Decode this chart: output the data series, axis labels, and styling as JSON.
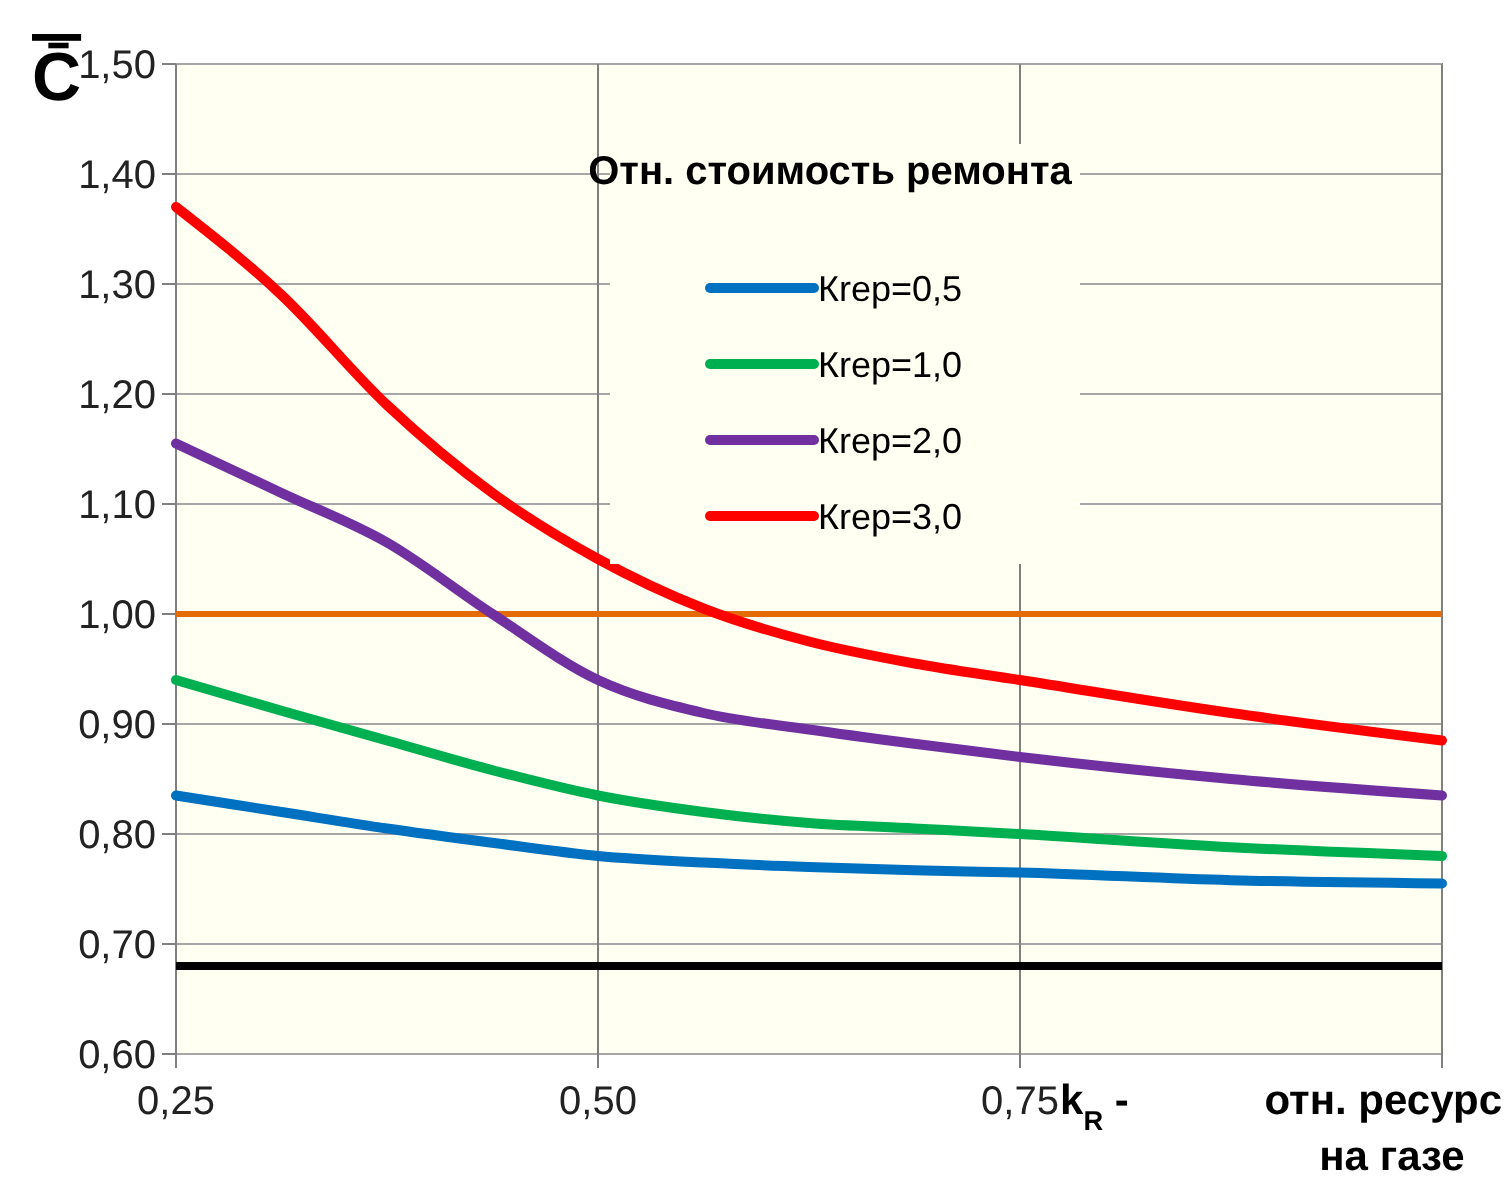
{
  "chart_data": {
    "type": "line",
    "ylabel": "C̄",
    "xlabel": "k$_{R}$ - отн. ресурс на газе",
    "legend_title": "Отн. стоимость ремонта",
    "x": [
      0.25,
      0.3125,
      0.375,
      0.4375,
      0.5,
      0.5625,
      0.625,
      0.6875,
      0.75,
      0.875,
      1.0
    ],
    "series": [
      {
        "name": "Кrep=0,5",
        "color": "#0070c0",
        "values": [
          0.835,
          0.82,
          0.805,
          0.792,
          0.78,
          0.774,
          0.77,
          0.767,
          0.765,
          0.758,
          0.755
        ]
      },
      {
        "name": "Кrep=1,0",
        "color": "#00b050",
        "values": [
          0.94,
          0.912,
          0.885,
          0.858,
          0.835,
          0.82,
          0.81,
          0.805,
          0.8,
          0.788,
          0.78
        ]
      },
      {
        "name": "Кrep=2,0",
        "color": "#7030a0",
        "values": [
          1.155,
          1.11,
          1.065,
          1.0,
          0.94,
          0.91,
          0.895,
          0.882,
          0.87,
          0.85,
          0.835
        ]
      },
      {
        "name": "Кrep=3,0",
        "color": "#ff0000",
        "values": [
          1.37,
          1.29,
          1.19,
          1.11,
          1.05,
          1.005,
          0.975,
          0.955,
          0.94,
          0.91,
          0.885
        ]
      }
    ],
    "xlim": [
      0.25,
      1.0
    ],
    "xticks": [
      {
        "value": 0.25,
        "label": "0,25"
      },
      {
        "value": 0.5,
        "label": "0,50"
      },
      {
        "value": 0.75,
        "label": "0,75"
      },
      {
        "value": 1.0,
        "label": null
      }
    ],
    "ylim": [
      0.6,
      1.5
    ],
    "yticks": [
      {
        "value": 0.6,
        "label": "0,60"
      },
      {
        "value": 0.7,
        "label": "0,70"
      },
      {
        "value": 0.8,
        "label": "0,80"
      },
      {
        "value": 0.9,
        "label": "0,90"
      },
      {
        "value": 1.0,
        "label": "1,00"
      },
      {
        "value": 1.1,
        "label": "1,10"
      },
      {
        "value": 1.2,
        "label": "1,20"
      },
      {
        "value": 1.3,
        "label": "1,30"
      },
      {
        "value": 1.4,
        "label": "1,40"
      },
      {
        "value": 1.5,
        "label": "1,50"
      }
    ],
    "ref_lines": [
      {
        "axis": "y",
        "value": 1.0,
        "color": "#e36c09"
      },
      {
        "axis": "y",
        "value": 0.68,
        "color": "#000000"
      }
    ],
    "grid": true,
    "legend": "top",
    "line_style": "solid",
    "marker": "none"
  }
}
